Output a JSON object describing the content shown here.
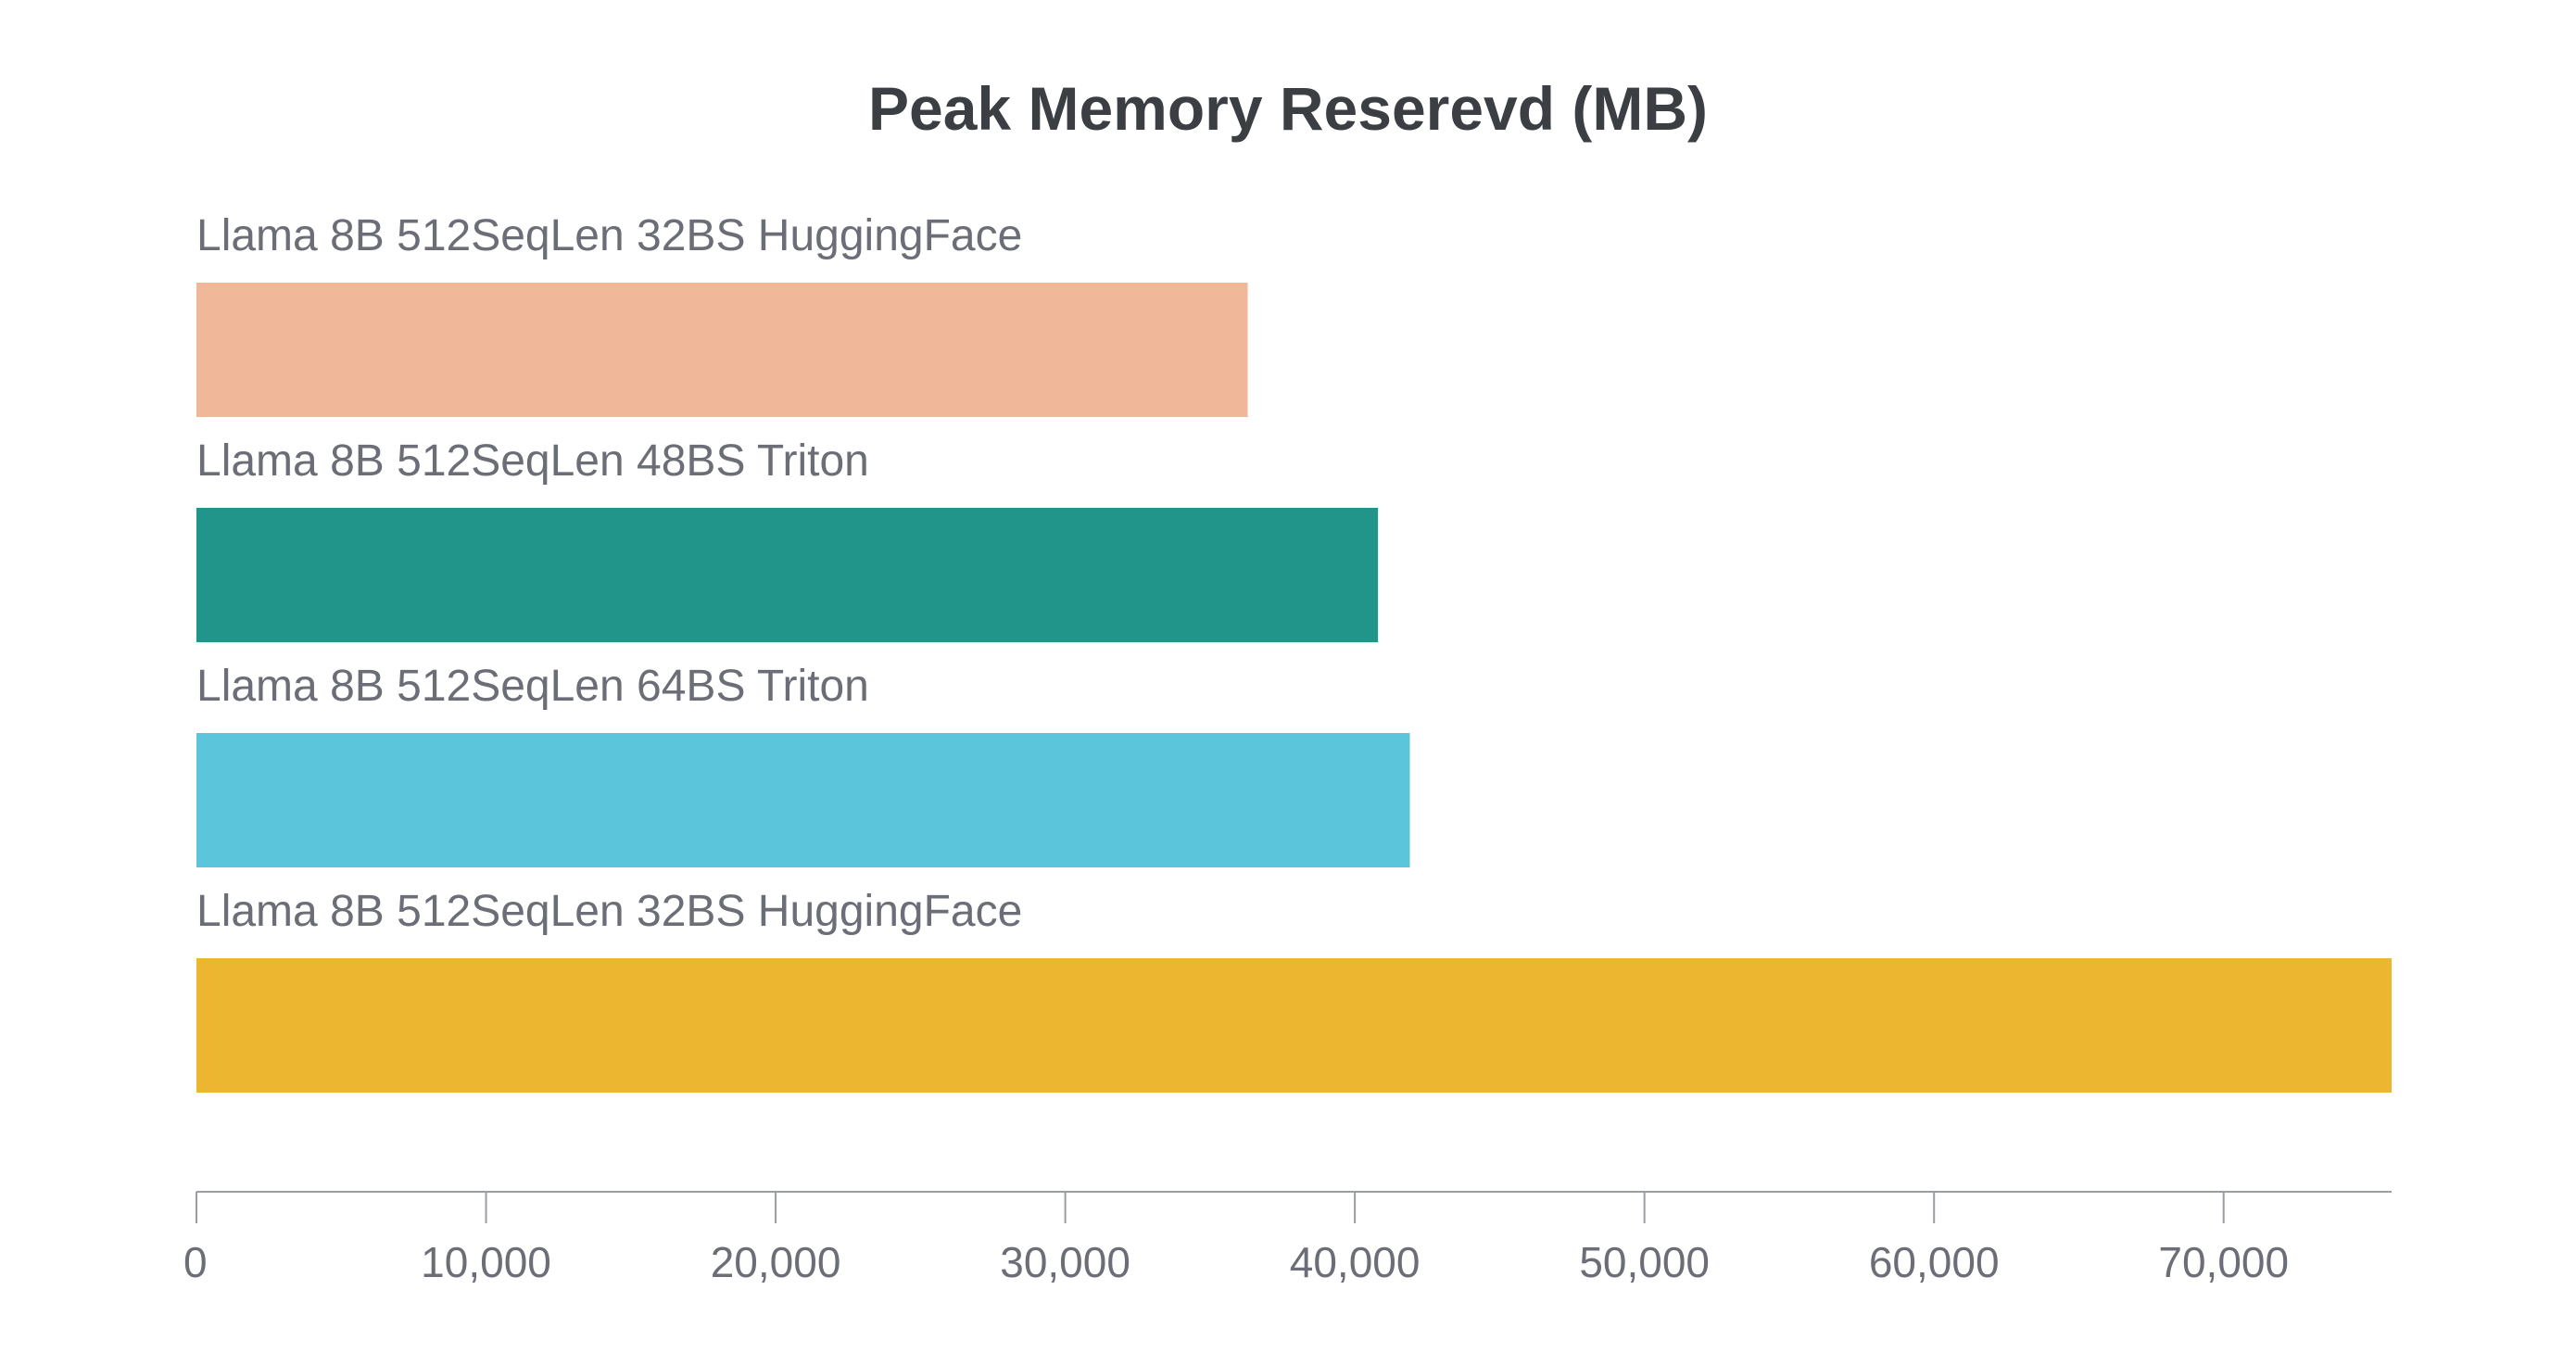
{
  "chart_data": {
    "type": "bar",
    "orientation": "horizontal",
    "title": "Peak Memory Reserevd (MB)",
    "xlabel": "",
    "ylabel": "",
    "xlim": [
      0,
      75800
    ],
    "x_ticks": [
      0,
      10000,
      20000,
      30000,
      40000,
      50000,
      60000,
      70000
    ],
    "x_tick_labels": [
      "0",
      "10,000",
      "20,000",
      "30,000",
      "40,000",
      "50,000",
      "60,000",
      "70,000"
    ],
    "grid": false,
    "legend": "none",
    "categories": [
      "Llama 8B 512SeqLen 32BS HuggingFace",
      "Llama 8B 512SeqLen 48BS Triton",
      "Llama 8B 512SeqLen 64BS Triton",
      "Llama 8B 512SeqLen 32BS HuggingFace"
    ],
    "values": [
      36300,
      40800,
      41900,
      75800
    ],
    "colors": [
      "#f0b799",
      "#22958a",
      "#5bc5dc",
      "#edb631"
    ]
  }
}
